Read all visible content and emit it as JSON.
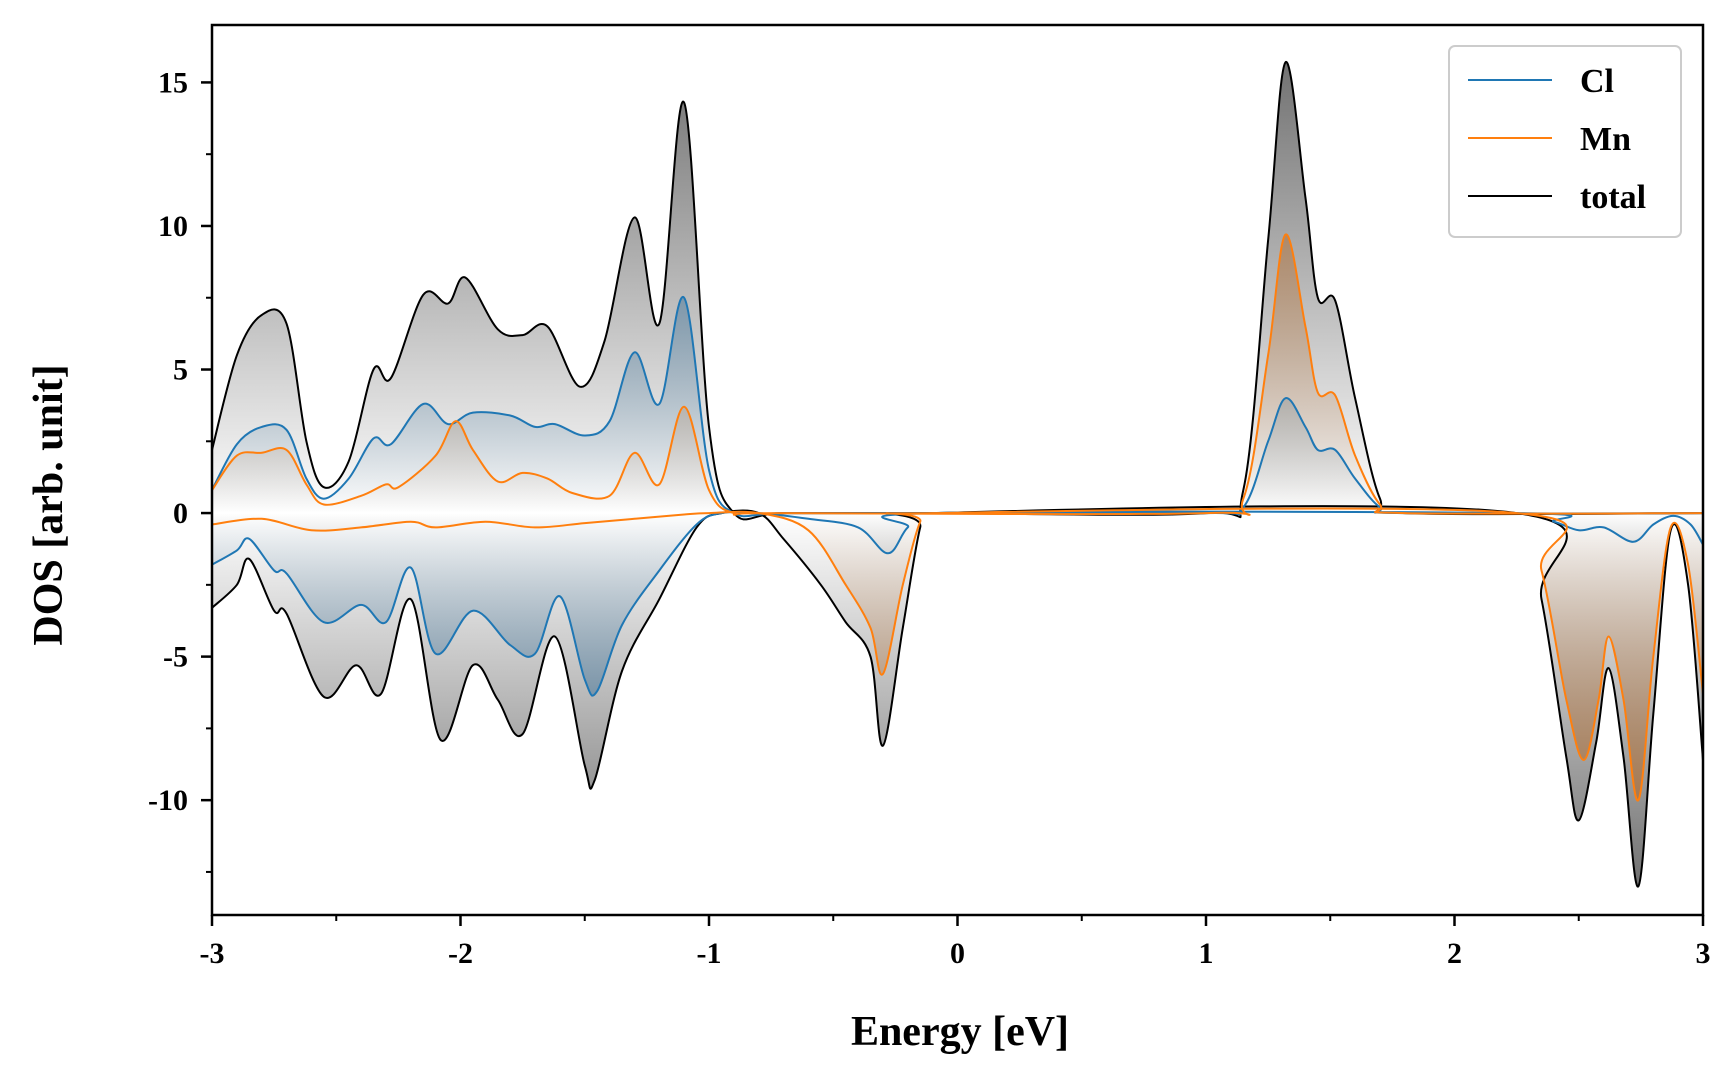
{
  "chart_data": {
    "type": "area",
    "title": "",
    "xlabel": "Energy [eV]",
    "ylabel": "DOS [arb. unit]",
    "xlim": [
      -3,
      3
    ],
    "ylim": [
      -14,
      17
    ],
    "xticks": [
      -3,
      -2,
      -1,
      0,
      1,
      2,
      3
    ],
    "xtick_labels": [
      "-3",
      "-2",
      "-1",
      "0",
      "1",
      "2",
      "3"
    ],
    "yticks": [
      -10,
      -5,
      0,
      5,
      10,
      15
    ],
    "ytick_labels": [
      "-10",
      "-5",
      "0",
      "5",
      "10",
      "15"
    ],
    "grid": false,
    "legend_position": "top-right",
    "series": [
      {
        "name": "Cl",
        "color": "#1f77b4",
        "up": [
          [
            -3,
            0.8
          ],
          [
            -2.9,
            2.4
          ],
          [
            -2.8,
            3.0
          ],
          [
            -2.7,
            2.9
          ],
          [
            -2.62,
            1.2
          ],
          [
            -2.55,
            0.5
          ],
          [
            -2.45,
            1.2
          ],
          [
            -2.35,
            2.6
          ],
          [
            -2.28,
            2.4
          ],
          [
            -2.15,
            3.8
          ],
          [
            -2.05,
            3.1
          ],
          [
            -1.95,
            3.5
          ],
          [
            -1.8,
            3.4
          ],
          [
            -1.7,
            3.0
          ],
          [
            -1.62,
            3.1
          ],
          [
            -1.5,
            2.7
          ],
          [
            -1.4,
            3.2
          ],
          [
            -1.3,
            5.6
          ],
          [
            -1.2,
            3.8
          ],
          [
            -1.1,
            7.5
          ],
          [
            -1.0,
            1.5
          ],
          [
            -0.9,
            0
          ],
          [
            -0.7,
            0
          ],
          [
            -0.1,
            0
          ],
          [
            1.0,
            0
          ],
          [
            1.15,
            0.2
          ],
          [
            1.25,
            2.5
          ],
          [
            1.32,
            4.0
          ],
          [
            1.4,
            3.0
          ],
          [
            1.45,
            2.2
          ],
          [
            1.52,
            2.2
          ],
          [
            1.6,
            1.2
          ],
          [
            1.7,
            0.2
          ],
          [
            1.8,
            0
          ],
          [
            3.0,
            0
          ]
        ],
        "down": [
          [
            -3,
            -1.8
          ],
          [
            -2.9,
            -1.3
          ],
          [
            -2.85,
            -0.9
          ],
          [
            -2.75,
            -2.0
          ],
          [
            -2.7,
            -2.1
          ],
          [
            -2.55,
            -3.8
          ],
          [
            -2.4,
            -3.2
          ],
          [
            -2.3,
            -3.8
          ],
          [
            -2.2,
            -1.9
          ],
          [
            -2.1,
            -4.9
          ],
          [
            -1.95,
            -3.4
          ],
          [
            -1.8,
            -4.6
          ],
          [
            -1.7,
            -4.9
          ],
          [
            -1.6,
            -2.9
          ],
          [
            -1.5,
            -5.8
          ],
          [
            -1.45,
            -6.2
          ],
          [
            -1.35,
            -3.9
          ],
          [
            -1.2,
            -2.0
          ],
          [
            -1.05,
            -0.4
          ],
          [
            -0.95,
            0
          ],
          [
            -0.8,
            0
          ],
          [
            -0.6,
            -0.2
          ],
          [
            -0.4,
            -0.5
          ],
          [
            -0.28,
            -1.4
          ],
          [
            -0.2,
            -0.5
          ],
          [
            -0.1,
            0
          ],
          [
            2.25,
            0
          ],
          [
            2.4,
            -0.3
          ],
          [
            2.5,
            -0.6
          ],
          [
            2.6,
            -0.5
          ],
          [
            2.72,
            -1.0
          ],
          [
            2.8,
            -0.4
          ],
          [
            2.88,
            -0.1
          ],
          [
            2.95,
            -0.4
          ],
          [
            3.0,
            -1.1
          ]
        ]
      },
      {
        "name": "Mn",
        "color": "#ff7f0e",
        "up": [
          [
            -3,
            0.8
          ],
          [
            -2.9,
            2.0
          ],
          [
            -2.8,
            2.1
          ],
          [
            -2.7,
            2.2
          ],
          [
            -2.62,
            1.0
          ],
          [
            -2.55,
            0.3
          ],
          [
            -2.4,
            0.6
          ],
          [
            -2.3,
            1.0
          ],
          [
            -2.25,
            0.9
          ],
          [
            -2.1,
            2.0
          ],
          [
            -2.02,
            3.2
          ],
          [
            -1.95,
            2.2
          ],
          [
            -1.85,
            1.1
          ],
          [
            -1.75,
            1.4
          ],
          [
            -1.65,
            1.2
          ],
          [
            -1.55,
            0.7
          ],
          [
            -1.4,
            0.6
          ],
          [
            -1.3,
            2.1
          ],
          [
            -1.2,
            1.0
          ],
          [
            -1.1,
            3.7
          ],
          [
            -1.0,
            0.8
          ],
          [
            -0.9,
            0
          ],
          [
            -0.7,
            0
          ],
          [
            1.0,
            0
          ],
          [
            1.15,
            0.5
          ],
          [
            1.25,
            5.5
          ],
          [
            1.32,
            9.7
          ],
          [
            1.4,
            6.5
          ],
          [
            1.45,
            4.2
          ],
          [
            1.52,
            4.1
          ],
          [
            1.6,
            2.0
          ],
          [
            1.7,
            0.3
          ],
          [
            1.8,
            0
          ],
          [
            3.0,
            0
          ]
        ],
        "down": [
          [
            -3,
            -0.4
          ],
          [
            -2.8,
            -0.2
          ],
          [
            -2.6,
            -0.6
          ],
          [
            -2.4,
            -0.5
          ],
          [
            -2.2,
            -0.3
          ],
          [
            -2.1,
            -0.5
          ],
          [
            -1.9,
            -0.3
          ],
          [
            -1.7,
            -0.5
          ],
          [
            -1.5,
            -0.35
          ],
          [
            -1.3,
            -0.2
          ],
          [
            -1.1,
            -0.05
          ],
          [
            -1.0,
            0
          ],
          [
            -0.8,
            0
          ],
          [
            -0.6,
            -0.6
          ],
          [
            -0.45,
            -2.5
          ],
          [
            -0.35,
            -4.0
          ],
          [
            -0.3,
            -5.6
          ],
          [
            -0.22,
            -2.5
          ],
          [
            -0.15,
            -0.3
          ],
          [
            -0.1,
            0
          ],
          [
            2.25,
            0
          ],
          [
            2.35,
            -2.0
          ],
          [
            2.45,
            -6.5
          ],
          [
            2.52,
            -8.6
          ],
          [
            2.58,
            -6.5
          ],
          [
            2.62,
            -4.3
          ],
          [
            2.68,
            -6.5
          ],
          [
            2.74,
            -10.0
          ],
          [
            2.8,
            -5.0
          ],
          [
            2.87,
            -0.5
          ],
          [
            2.94,
            -1.8
          ],
          [
            3.0,
            -6.3
          ]
        ]
      },
      {
        "name": "total",
        "color": "#000000",
        "up": [
          [
            -3,
            2.2
          ],
          [
            -2.9,
            5.5
          ],
          [
            -2.8,
            6.9
          ],
          [
            -2.7,
            6.6
          ],
          [
            -2.62,
            2.5
          ],
          [
            -2.55,
            0.9
          ],
          [
            -2.45,
            1.8
          ],
          [
            -2.35,
            5.0
          ],
          [
            -2.28,
            4.7
          ],
          [
            -2.15,
            7.6
          ],
          [
            -2.05,
            7.3
          ],
          [
            -1.98,
            8.2
          ],
          [
            -1.85,
            6.4
          ],
          [
            -1.75,
            6.2
          ],
          [
            -1.65,
            6.5
          ],
          [
            -1.52,
            4.4
          ],
          [
            -1.42,
            6.0
          ],
          [
            -1.3,
            10.3
          ],
          [
            -1.2,
            6.6
          ],
          [
            -1.1,
            14.3
          ],
          [
            -1.0,
            3.0
          ],
          [
            -0.9,
            0
          ],
          [
            -0.7,
            0
          ],
          [
            -0.1,
            0
          ],
          [
            1.0,
            0
          ],
          [
            1.15,
            0.8
          ],
          [
            1.25,
            9.5
          ],
          [
            1.32,
            15.7
          ],
          [
            1.4,
            11.0
          ],
          [
            1.45,
            7.5
          ],
          [
            1.52,
            7.4
          ],
          [
            1.6,
            4.0
          ],
          [
            1.7,
            0.5
          ],
          [
            1.8,
            0
          ],
          [
            3.0,
            0
          ]
        ],
        "down": [
          [
            -3,
            -3.3
          ],
          [
            -2.9,
            -2.5
          ],
          [
            -2.85,
            -1.6
          ],
          [
            -2.75,
            -3.4
          ],
          [
            -2.7,
            -3.5
          ],
          [
            -2.55,
            -6.4
          ],
          [
            -2.42,
            -5.3
          ],
          [
            -2.32,
            -6.3
          ],
          [
            -2.2,
            -3.0
          ],
          [
            -2.08,
            -7.9
          ],
          [
            -1.95,
            -5.3
          ],
          [
            -1.85,
            -6.5
          ],
          [
            -1.75,
            -7.7
          ],
          [
            -1.62,
            -4.3
          ],
          [
            -1.5,
            -8.8
          ],
          [
            -1.46,
            -9.3
          ],
          [
            -1.35,
            -5.5
          ],
          [
            -1.2,
            -3.0
          ],
          [
            -1.05,
            -0.5
          ],
          [
            -0.95,
            0
          ],
          [
            -0.8,
            0
          ],
          [
            -0.7,
            -0.9
          ],
          [
            -0.55,
            -2.5
          ],
          [
            -0.45,
            -3.8
          ],
          [
            -0.35,
            -5.0
          ],
          [
            -0.3,
            -8.1
          ],
          [
            -0.22,
            -4.0
          ],
          [
            -0.15,
            -0.5
          ],
          [
            -0.1,
            0
          ],
          [
            2.25,
            0
          ],
          [
            2.35,
            -3.0
          ],
          [
            2.45,
            -8.5
          ],
          [
            2.5,
            -10.7
          ],
          [
            2.57,
            -8.0
          ],
          [
            2.62,
            -5.4
          ],
          [
            2.68,
            -8.5
          ],
          [
            2.74,
            -13.0
          ],
          [
            2.8,
            -7.0
          ],
          [
            2.87,
            -0.6
          ],
          [
            2.94,
            -2.5
          ],
          [
            3.0,
            -8.6
          ]
        ]
      }
    ]
  }
}
